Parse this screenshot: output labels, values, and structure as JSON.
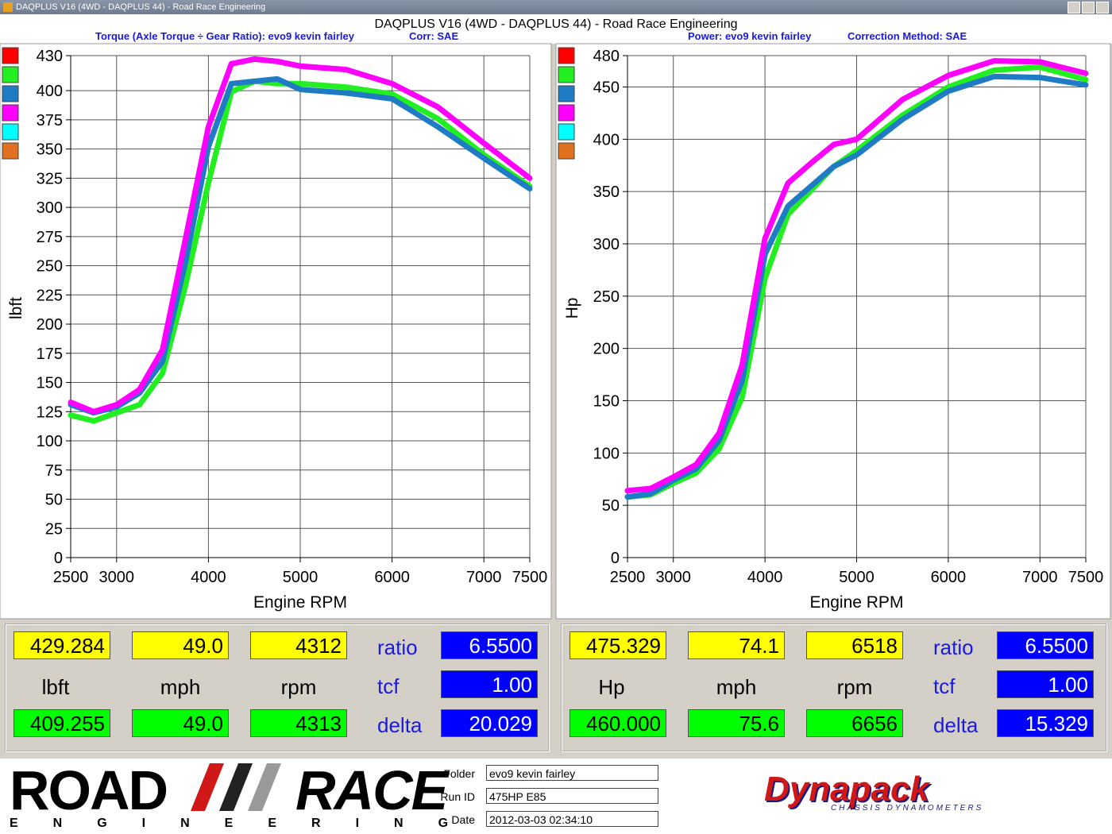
{
  "window": {
    "title": "DAQPLUS V16 (4WD - DAQPLUS 44) - Road Race Engineering",
    "heading": "DAQPLUS V16 (4WD - DAQPLUS 44) - Road Race Engineering"
  },
  "chart_data": [
    {
      "type": "line",
      "title": "Torque (Axle Torque ÷ Gear Ratio): evo9 kevin fairley",
      "subtitle": "Corr: SAE",
      "x_label": "Engine RPM",
      "y_label": "lbft",
      "legend_swatches": [
        "#ff0000",
        "#22ee22",
        "#1e7bc4",
        "#ff00ff",
        "#00ffff",
        "#e07020"
      ],
      "x": [
        2500,
        2750,
        3000,
        3250,
        3500,
        3750,
        4000,
        4250,
        4500,
        4750,
        5000,
        5500,
        6000,
        6500,
        7000,
        7500
      ],
      "xlim": [
        2500,
        7500
      ],
      "xticks": [
        2500,
        3000,
        4000,
        5000,
        6000,
        7000,
        7500
      ],
      "ylim": [
        0,
        430
      ],
      "yticks": [
        0,
        25,
        50,
        75,
        100,
        125,
        150,
        175,
        200,
        225,
        250,
        275,
        300,
        325,
        350,
        375,
        400,
        430
      ],
      "grid": true,
      "series": [
        {
          "color": "#22ee22",
          "values": [
            122,
            117,
            124,
            131,
            158,
            233,
            321,
            399,
            408,
            406,
            406,
            403,
            397,
            376,
            345,
            318
          ]
        },
        {
          "color": "#1e7bc4",
          "values": [
            131,
            124,
            129,
            141,
            168,
            253,
            352,
            406,
            408,
            410,
            401,
            398,
            393,
            369,
            342,
            316
          ]
        },
        {
          "color": "#ff00ff",
          "values": [
            133,
            125,
            131,
            144,
            178,
            273,
            369,
            423,
            427,
            425,
            421,
            418,
            406,
            386,
            355,
            325
          ]
        }
      ]
    },
    {
      "type": "line",
      "title": "Power: evo9 kevin fairley",
      "subtitle": "Correction Method: SAE",
      "x_label": "Engine RPM",
      "y_label": "Hp",
      "legend_swatches": [
        "#ff0000",
        "#22ee22",
        "#1e7bc4",
        "#ff00ff",
        "#00ffff",
        "#e07020"
      ],
      "x": [
        2500,
        2750,
        3000,
        3250,
        3500,
        3750,
        4000,
        4250,
        4500,
        4750,
        5000,
        5500,
        6000,
        6500,
        7000,
        7500
      ],
      "xlim": [
        2500,
        7500
      ],
      "xticks": [
        2500,
        3000,
        4000,
        5000,
        6000,
        7000,
        7500
      ],
      "ylim": [
        0,
        480
      ],
      "yticks": [
        0,
        50,
        100,
        150,
        200,
        250,
        300,
        350,
        400,
        450,
        480
      ],
      "grid": true,
      "series": [
        {
          "color": "#22ee22",
          "values": [
            58,
            60,
            71,
            81,
            104,
            153,
            267,
            328,
            351,
            374,
            389,
            423,
            450,
            466,
            469,
            457
          ]
        },
        {
          "color": "#1e7bc4",
          "values": [
            58,
            61,
            74,
            85,
            112,
            169,
            290,
            336,
            355,
            374,
            385,
            419,
            446,
            460,
            459,
            452
          ]
        },
        {
          "color": "#ff00ff",
          "values": [
            64,
            66,
            77,
            89,
            119,
            184,
            305,
            358,
            377,
            395,
            400,
            438,
            461,
            475,
            474,
            463
          ]
        }
      ]
    }
  ],
  "panels": [
    {
      "top": [
        "429.284",
        "49.0",
        "4312"
      ],
      "units": [
        "lbft",
        "mph",
        "rpm"
      ],
      "bottom": [
        "409.255",
        "49.0",
        "4313"
      ],
      "params": [
        "ratio",
        "tcf",
        "delta"
      ],
      "param_values": [
        "6.5500",
        "1.00",
        "20.029"
      ]
    },
    {
      "top": [
        "475.329",
        "74.1",
        "6518"
      ],
      "units": [
        "Hp",
        "mph",
        "rpm"
      ],
      "bottom": [
        "460.000",
        "75.6",
        "6656"
      ],
      "params": [
        "ratio",
        "tcf",
        "delta"
      ],
      "param_values": [
        "6.5500",
        "1.00",
        "15.329"
      ]
    }
  ],
  "footer": {
    "logo_road": "ROAD",
    "logo_race": "RACE",
    "logo_sub": "ENGINEERING",
    "fields": [
      {
        "label": "Folder",
        "value": "evo9 kevin fairley"
      },
      {
        "label": "Run ID",
        "value": "475HP E85"
      },
      {
        "label": "Date",
        "value": "2012-03-03 02:34:10"
      }
    ],
    "brand": "Dynapack",
    "brand_sub": "CHASSIS DYNAMOMETERS"
  }
}
